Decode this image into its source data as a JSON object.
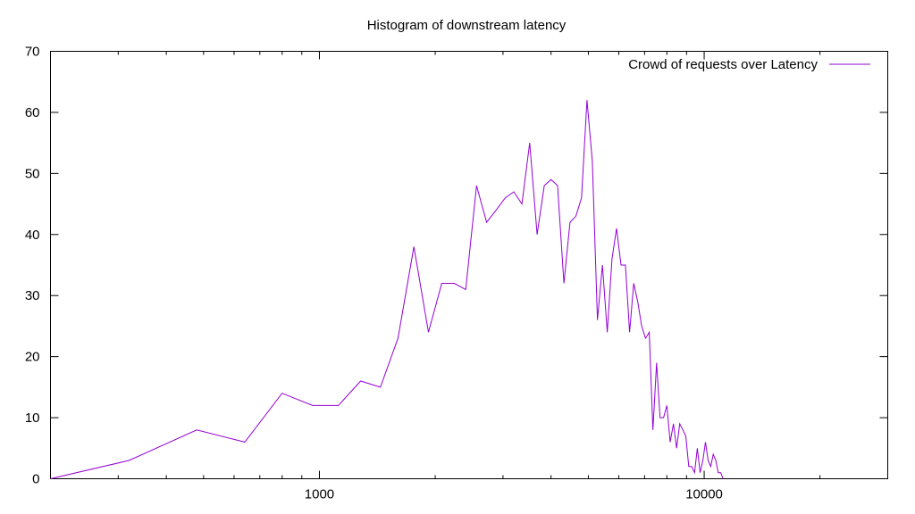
{
  "chart_data": {
    "type": "line",
    "title": "Histogram of downstream latency",
    "xlabel": "",
    "ylabel": "",
    "x_scale": "log",
    "xlim": [
      200,
      30000
    ],
    "ylim": [
      0,
      70
    ],
    "x_ticks": [
      1000,
      10000
    ],
    "x_tick_labels": [
      "1000",
      "10000"
    ],
    "y_ticks": [
      0,
      10,
      20,
      30,
      40,
      50,
      60,
      70
    ],
    "y_tick_labels": [
      "0",
      "10",
      "20",
      "30",
      "40",
      "50",
      "60",
      "70"
    ],
    "grid": false,
    "legend_position": "top-right",
    "series": [
      {
        "name": "Crowd of requests over Latency",
        "color": "#9400d3",
        "x": [
          200,
          320,
          480,
          640,
          800,
          960,
          1120,
          1280,
          1440,
          1600,
          1760,
          1920,
          2080,
          2240,
          2400,
          2560,
          2720,
          2880,
          3040,
          3200,
          3360,
          3520,
          3680,
          3840,
          4000,
          4160,
          4320,
          4480,
          4640,
          4800,
          4960,
          5120,
          5280,
          5440,
          5600,
          5760,
          5920,
          6080,
          6240,
          6400,
          6560,
          6720,
          6880,
          7040,
          7200,
          7360,
          7520,
          7680,
          7840,
          8000,
          8160,
          8320,
          8480,
          8640,
          8800,
          8960,
          9120,
          9280,
          9440,
          9600,
          9760,
          9920,
          10080,
          10240,
          10400,
          10560,
          10720,
          10880,
          11040,
          11200
        ],
        "y": [
          0,
          3,
          8,
          6,
          14,
          12,
          12,
          16,
          15,
          23,
          38,
          24,
          32,
          32,
          31,
          48,
          42,
          44,
          46,
          47,
          45,
          55,
          40,
          48,
          49,
          48,
          32,
          42,
          43,
          46,
          62,
          52,
          26,
          35,
          24,
          36,
          41,
          35,
          35,
          24,
          32,
          29,
          25,
          23,
          24,
          8,
          19,
          10,
          10,
          12,
          6,
          9,
          5,
          9,
          8,
          7,
          2,
          2,
          1,
          5,
          1,
          3,
          6,
          3,
          2,
          4,
          3,
          1,
          1,
          0
        ]
      }
    ]
  }
}
